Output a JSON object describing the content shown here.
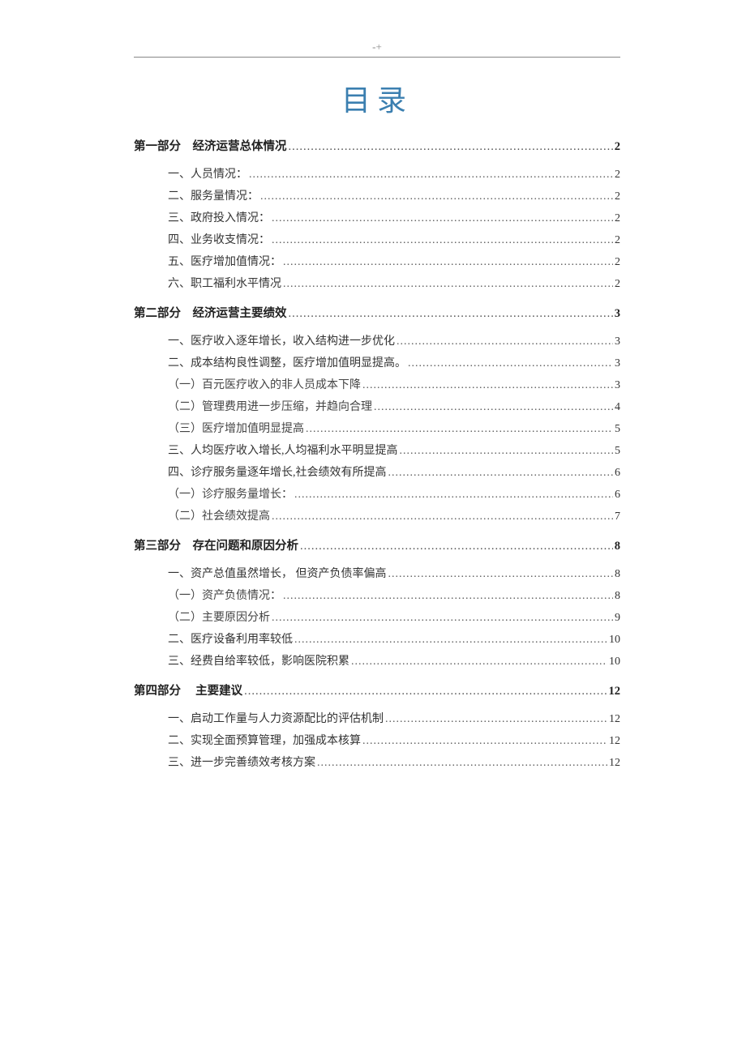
{
  "header_mark": "-+",
  "title": "目录",
  "title_color": "#3b7fb0",
  "dots_fill": "............................................................................................................................................................................",
  "toc": [
    {
      "level": 1,
      "label": "第一部分　经济运营总体情况",
      "page": "2"
    },
    {
      "level": 2,
      "label": "一、人员情况：",
      "page": "2"
    },
    {
      "level": 2,
      "label": "二、服务量情况：",
      "page": "2"
    },
    {
      "level": 2,
      "label": "三、政府投入情况：",
      "page": "2"
    },
    {
      "level": 2,
      "label": "四、业务收支情况：",
      "page": "2"
    },
    {
      "level": 2,
      "label": "五、医疗增加值情况：",
      "page": "2"
    },
    {
      "level": 2,
      "label": "六、职工福利水平情况",
      "page": "2"
    },
    {
      "level": 1,
      "label": "第二部分　经济运营主要绩效",
      "page": "3"
    },
    {
      "level": 2,
      "label": "一、医疗收入逐年增长，收入结构进一步优化",
      "page": "3"
    },
    {
      "level": 2,
      "label": "二、成本结构良性调整，医疗增加值明显提高。",
      "page": "3"
    },
    {
      "level": 3,
      "label": "（一）百元医疗收入的非人员成本下降",
      "page": "3"
    },
    {
      "level": 3,
      "label": "（二）管理费用进一步压缩，并趋向合理",
      "page": "4"
    },
    {
      "level": 3,
      "label": "（三）医疗增加值明显提高",
      "page": "5"
    },
    {
      "level": 2,
      "label": "三、人均医疗收入增长,人均福利水平明显提高",
      "page": "5"
    },
    {
      "level": 2,
      "label": "四、诊疗服务量逐年增长,社会绩效有所提高",
      "page": "6"
    },
    {
      "level": 3,
      "label": "（一）诊疗服务量增长：",
      "page": "6"
    },
    {
      "level": 3,
      "label": "（二）社会绩效提高",
      "page": "7"
    },
    {
      "level": 1,
      "label": "第三部分　存在问题和原因分析",
      "page": "8"
    },
    {
      "level": 2,
      "label": "一、资产总值虽然增长， 但资产负债率偏高",
      "page": "8"
    },
    {
      "level": 3,
      "label": "（一）资产负债情况：",
      "page": "8"
    },
    {
      "level": 3,
      "label": "（二）主要原因分析",
      "page": "9"
    },
    {
      "level": 2,
      "label": "二、医疗设备利用率较低",
      "page": "10"
    },
    {
      "level": 2,
      "label": "三、经费自给率较低，影响医院积累",
      "page": "10"
    },
    {
      "level": 1,
      "label": "第四部分　 主要建议",
      "page": "12"
    },
    {
      "level": 2,
      "label": "一、启动工作量与人力资源配比的评估机制",
      "page": "12"
    },
    {
      "level": 2,
      "label": "二、实现全面预算管理，加强成本核算",
      "page": "12"
    },
    {
      "level": 2,
      "label": "三、进一步完善绩效考核方案",
      "page": "12"
    }
  ]
}
